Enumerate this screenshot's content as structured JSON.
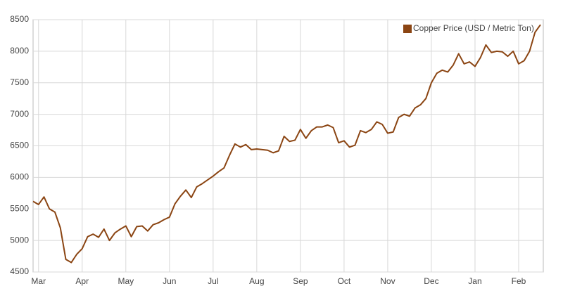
{
  "chart_data": {
    "type": "line",
    "categories": [
      null,
      "Mar",
      null,
      null,
      null,
      null,
      null,
      null,
      null,
      "Apr",
      null,
      null,
      null,
      null,
      null,
      null,
      null,
      "May",
      null,
      null,
      null,
      null,
      null,
      null,
      null,
      "Jun",
      null,
      null,
      null,
      null,
      null,
      null,
      null,
      "Jul",
      null,
      null,
      null,
      null,
      null,
      null,
      null,
      "Aug",
      null,
      null,
      null,
      null,
      null,
      null,
      null,
      "Sep",
      null,
      null,
      null,
      null,
      null,
      null,
      null,
      "Oct",
      null,
      null,
      null,
      null,
      null,
      null,
      null,
      "Nov",
      null,
      null,
      null,
      null,
      null,
      null,
      null,
      "Dec",
      null,
      null,
      null,
      null,
      null,
      null,
      null,
      "Jan",
      null,
      null,
      null,
      null,
      null,
      null,
      null,
      "Feb",
      null,
      null,
      null,
      null
    ],
    "series": [
      {
        "name": "Copper Price (USD / Metric Ton)",
        "color": "#8b4513",
        "values": [
          5620,
          5570,
          5690,
          5500,
          5450,
          5200,
          4700,
          4650,
          4780,
          4870,
          5060,
          5100,
          5050,
          5180,
          5000,
          5120,
          5180,
          5230,
          5060,
          5220,
          5230,
          5150,
          5250,
          5280,
          5330,
          5370,
          5580,
          5700,
          5800,
          5680,
          5850,
          5900,
          5960,
          6020,
          6090,
          6150,
          6350,
          6530,
          6480,
          6520,
          6440,
          6450,
          6440,
          6430,
          6390,
          6420,
          6650,
          6570,
          6590,
          6760,
          6620,
          6740,
          6800,
          6800,
          6830,
          6790,
          6550,
          6580,
          6480,
          6510,
          6740,
          6710,
          6760,
          6880,
          6840,
          6700,
          6720,
          6950,
          7000,
          6970,
          7100,
          7150,
          7250,
          7500,
          7650,
          7700,
          7670,
          7780,
          7960,
          7800,
          7830,
          7760,
          7900,
          8100,
          7980,
          8000,
          7990,
          7920,
          8000,
          7800,
          7850,
          8000,
          8300,
          8420
        ]
      }
    ],
    "ylim": [
      4500,
      8500
    ],
    "yticks": [
      4500,
      5000,
      5500,
      6000,
      6500,
      7000,
      7500,
      8000,
      8500
    ],
    "grid": true,
    "legend": "top-right"
  }
}
